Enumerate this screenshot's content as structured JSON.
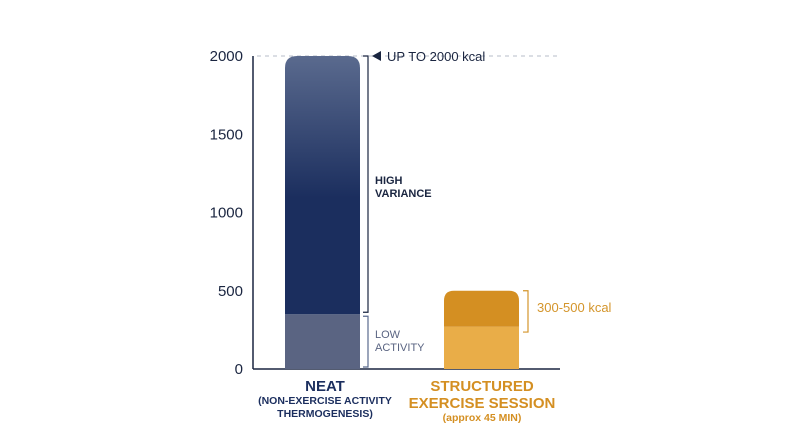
{
  "colors": {
    "neat_dark": "#1b2e5e",
    "neat_fade": "#5a6a8e",
    "neat_low": "#5a6482",
    "exercise_dark": "#d48f22",
    "exercise_light": "#e9ad48",
    "axis": "#1a2540",
    "annotation_gold": "#d4952b",
    "grid_dashed": "#b7bdc8"
  },
  "chart_data": {
    "type": "bar",
    "stacked": true,
    "ylim": [
      0,
      2000
    ],
    "yticks": [
      "0",
      "500",
      "1000",
      "1500",
      "2000"
    ],
    "ytick_values": [
      0,
      500,
      1000,
      1500,
      2000
    ],
    "categories": [
      {
        "label": "NEAT",
        "sublabel_lines": [
          "(NON-EXERCISE ACTIVITY",
          "THERMOGENESIS)"
        ],
        "segments": [
          {
            "label": "LOW ACTIVITY",
            "from": 0,
            "to": 350
          },
          {
            "label": "HIGH VARIANCE",
            "from": 350,
            "to": 2000
          }
        ]
      },
      {
        "label_lines": [
          "STRUCTURED",
          "EXERCISE SESSION"
        ],
        "sublabel": "(approx 45 MIN)",
        "segments": [
          {
            "from": 0,
            "to": 270
          },
          {
            "from": 270,
            "to": 500
          }
        ]
      }
    ],
    "annotations": {
      "max_line": {
        "value": 2000,
        "label": "UP TO 2000 kcal",
        "style": "dashed"
      },
      "high_variance": {
        "lines": [
          "HIGH",
          "VARIANCE"
        ],
        "range": [
          350,
          2000
        ]
      },
      "low_activity": {
        "lines": [
          "LOW",
          "ACTIVITY"
        ],
        "range": [
          0,
          350
        ]
      },
      "exercise_range": {
        "label": "300-500 kcal",
        "range": [
          300,
          500
        ]
      }
    },
    "grid": false
  }
}
